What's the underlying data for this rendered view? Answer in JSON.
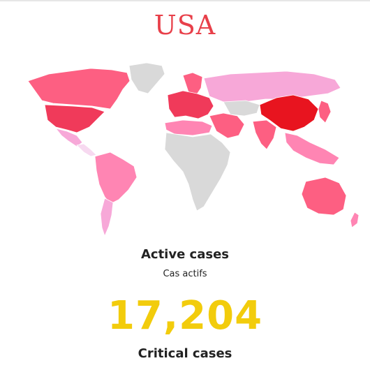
{
  "title": "USA",
  "stats": {
    "active_label": "Active cases",
    "active_label_fr": "Cas actifs",
    "active_value": "17,204",
    "critical_label": "Critical cases"
  },
  "colors": {
    "title": "#e8404a",
    "value": "#f2cc0c",
    "no_data": "#d9d9d9",
    "lowest": "#f7d9f0",
    "low": "#f7a8d8",
    "medium": "#ff85b3",
    "high": "#fd5f82",
    "higher": "#f03a5a",
    "highest": "#e8141f"
  },
  "map_regions": [
    {
      "name": "canada-greenland",
      "level": "high"
    },
    {
      "name": "greenland",
      "level": "no_data"
    },
    {
      "name": "usa",
      "level": "higher"
    },
    {
      "name": "mexico",
      "level": "low"
    },
    {
      "name": "central-america",
      "level": "lowest"
    },
    {
      "name": "south-america",
      "level": "medium"
    },
    {
      "name": "southern-cone",
      "level": "low"
    },
    {
      "name": "europe",
      "level": "higher"
    },
    {
      "name": "scandinavia",
      "level": "high"
    },
    {
      "name": "russia",
      "level": "low"
    },
    {
      "name": "africa",
      "level": "no_data"
    },
    {
      "name": "north-africa",
      "level": "medium"
    },
    {
      "name": "middle-east",
      "level": "high"
    },
    {
      "name": "india",
      "level": "high"
    },
    {
      "name": "central-asia",
      "level": "no_data"
    },
    {
      "name": "china",
      "level": "highest"
    },
    {
      "name": "southeast-asia",
      "level": "medium"
    },
    {
      "name": "japan-korea",
      "level": "high"
    },
    {
      "name": "australia",
      "level": "high"
    },
    {
      "name": "new-zealand",
      "level": "medium"
    }
  ]
}
